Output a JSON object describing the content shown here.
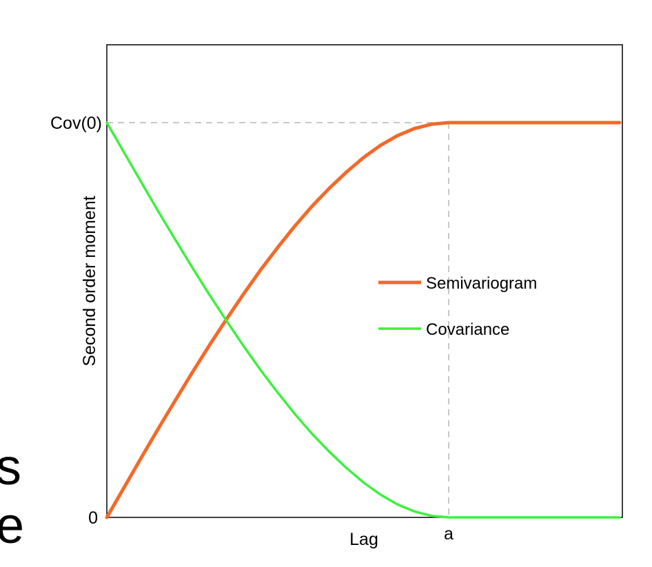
{
  "chart_data": {
    "type": "line",
    "title": "",
    "xlabel": "Lag",
    "ylabel": "Second order moment",
    "x_tick_labels": [
      "a"
    ],
    "y_tick_labels": [
      "0",
      "Cov(0)"
    ],
    "x_range": [
      0,
      1.5
    ],
    "y_range": [
      0,
      1.2
    ],
    "range_value": 1.0,
    "sill_value": 1.0,
    "reference_lines": "dashed",
    "legend_position": "right-middle",
    "series": [
      {
        "name": "Semivariogram",
        "color": "#f26a2a",
        "x": [
          0,
          0.05,
          0.1,
          0.15,
          0.2,
          0.25,
          0.3,
          0.35,
          0.4,
          0.45,
          0.5,
          0.55,
          0.6,
          0.65,
          0.7,
          0.75,
          0.8,
          0.85,
          0.9,
          0.95,
          1.0,
          1.5
        ],
        "y": [
          0,
          0.075,
          0.15,
          0.224,
          0.296,
          0.367,
          0.436,
          0.502,
          0.566,
          0.627,
          0.684,
          0.738,
          0.788,
          0.833,
          0.874,
          0.911,
          0.942,
          0.967,
          0.985,
          0.996,
          1.0,
          1.0
        ]
      },
      {
        "name": "Covariance",
        "color": "#3ef03e",
        "x": [
          0,
          0.05,
          0.1,
          0.15,
          0.2,
          0.25,
          0.3,
          0.35,
          0.4,
          0.45,
          0.5,
          0.55,
          0.6,
          0.65,
          0.7,
          0.75,
          0.8,
          0.85,
          0.9,
          0.95,
          1.0,
          1.5
        ],
        "y": [
          1.0,
          0.925,
          0.85,
          0.776,
          0.704,
          0.633,
          0.564,
          0.498,
          0.434,
          0.373,
          0.316,
          0.262,
          0.212,
          0.167,
          0.126,
          0.089,
          0.058,
          0.033,
          0.015,
          0.004,
          0,
          0
        ]
      }
    ]
  },
  "background_text": {
    "line1": "s",
    "line2": "e"
  }
}
